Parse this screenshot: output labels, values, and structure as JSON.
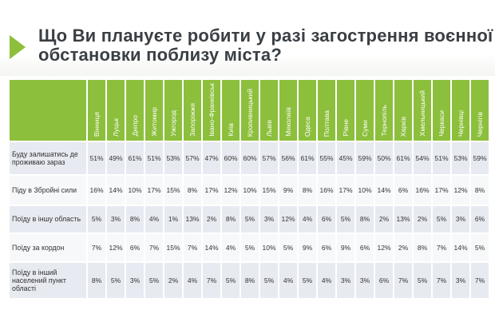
{
  "title_lines": [
    "Що Ви плануєте робити у разі загострення воєнної",
    "обстановки поблизу міста?"
  ],
  "colors": {
    "accent": "#8cbf3c",
    "row_dark": "#e7eaf1",
    "row_light": "#f7f8fa"
  },
  "chart_data": {
    "type": "table",
    "title": "Що Ви плануєте робити у разі загострення воєнної обстановки поблизу міста?",
    "columns": [
      "Вінниця",
      "Луцьк",
      "Дніпро",
      "Житомир",
      "Ужгород",
      "Запоріжжя",
      "Івано-Франківськ",
      "Київ",
      "Кропивницький",
      "Львів",
      "Миколаїв",
      "Одеса",
      "Полтава",
      "Рівне",
      "Суми",
      "Тернопіль",
      "Харків",
      "Хмельницький",
      "Черкаси",
      "Чернівці",
      "Чернігів"
    ],
    "rows": [
      {
        "label": "Буду залишатись де проживаю зараз",
        "values": [
          "51%",
          "49%",
          "61%",
          "51%",
          "53%",
          "57%",
          "47%",
          "60%",
          "60%",
          "57%",
          "56%",
          "61%",
          "55%",
          "45%",
          "59%",
          "50%",
          "61%",
          "54%",
          "51%",
          "53%",
          "59%"
        ]
      },
      {
        "label": "Піду в Збройні сили",
        "values": [
          "16%",
          "14%",
          "10%",
          "17%",
          "15%",
          "8%",
          "17%",
          "12%",
          "10%",
          "15%",
          "9%",
          "8%",
          "16%",
          "17%",
          "10%",
          "14%",
          "6%",
          "16%",
          "17%",
          "12%",
          "8%"
        ]
      },
      {
        "label": "Поїду в іншу область",
        "values": [
          "5%",
          "3%",
          "8%",
          "4%",
          "1%",
          "13%",
          "2%",
          "8%",
          "5%",
          "3%",
          "12%",
          "4%",
          "6%",
          "5%",
          "8%",
          "2%",
          "13%",
          "2%",
          "5%",
          "3%",
          "6%"
        ]
      },
      {
        "label": "Поїду за кордон",
        "values": [
          "7%",
          "12%",
          "6%",
          "7%",
          "15%",
          "7%",
          "14%",
          "4%",
          "5%",
          "10%",
          "5%",
          "9%",
          "6%",
          "9%",
          "6%",
          "12%",
          "2%",
          "8%",
          "7%",
          "14%",
          "5%"
        ]
      },
      {
        "label": "Поїду в інший населений пункт області",
        "values": [
          "8%",
          "5%",
          "3%",
          "5%",
          "2%",
          "4%",
          "7%",
          "5%",
          "8%",
          "5%",
          "4%",
          "5%",
          "4%",
          "3%",
          "3%",
          "6%",
          "7%",
          "5%",
          "7%",
          "3%",
          "7%"
        ]
      }
    ]
  }
}
